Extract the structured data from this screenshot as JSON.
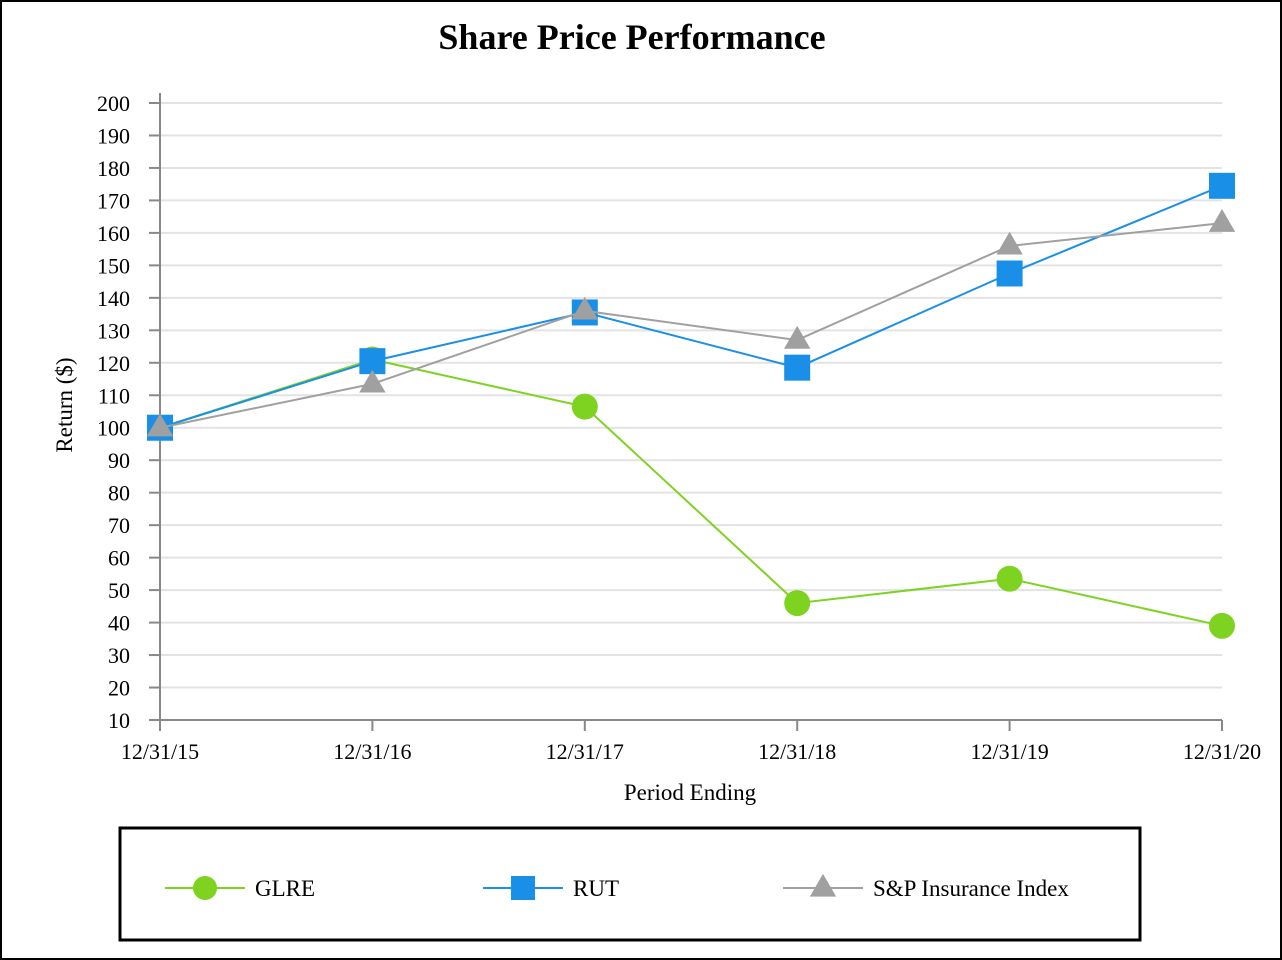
{
  "chart_data": {
    "type": "line",
    "title": "Share Price Performance",
    "xlabel": "Period Ending",
    "ylabel": "Return ($)",
    "categories": [
      "12/31/15",
      "12/31/16",
      "12/31/17",
      "12/31/18",
      "12/31/19",
      "12/31/20"
    ],
    "ylim": [
      10,
      200
    ],
    "yticks": [
      10,
      20,
      30,
      40,
      50,
      60,
      70,
      80,
      90,
      100,
      110,
      120,
      130,
      140,
      150,
      160,
      170,
      180,
      190,
      200
    ],
    "grid": true,
    "legend_position": "bottom",
    "series": [
      {
        "name": "GLRE",
        "marker": "circle",
        "color": "#7ed321",
        "values": [
          100,
          121,
          106.5,
          46,
          53.5,
          39
        ]
      },
      {
        "name": "RUT",
        "marker": "square",
        "color": "#1a8fe8",
        "values": [
          100,
          120.5,
          135.5,
          118.5,
          147.5,
          174.5
        ]
      },
      {
        "name": "S&P Insurance Index",
        "marker": "triangle",
        "color": "#a0a0a0",
        "values": [
          100,
          113.5,
          136,
          127,
          156,
          163
        ]
      }
    ]
  }
}
